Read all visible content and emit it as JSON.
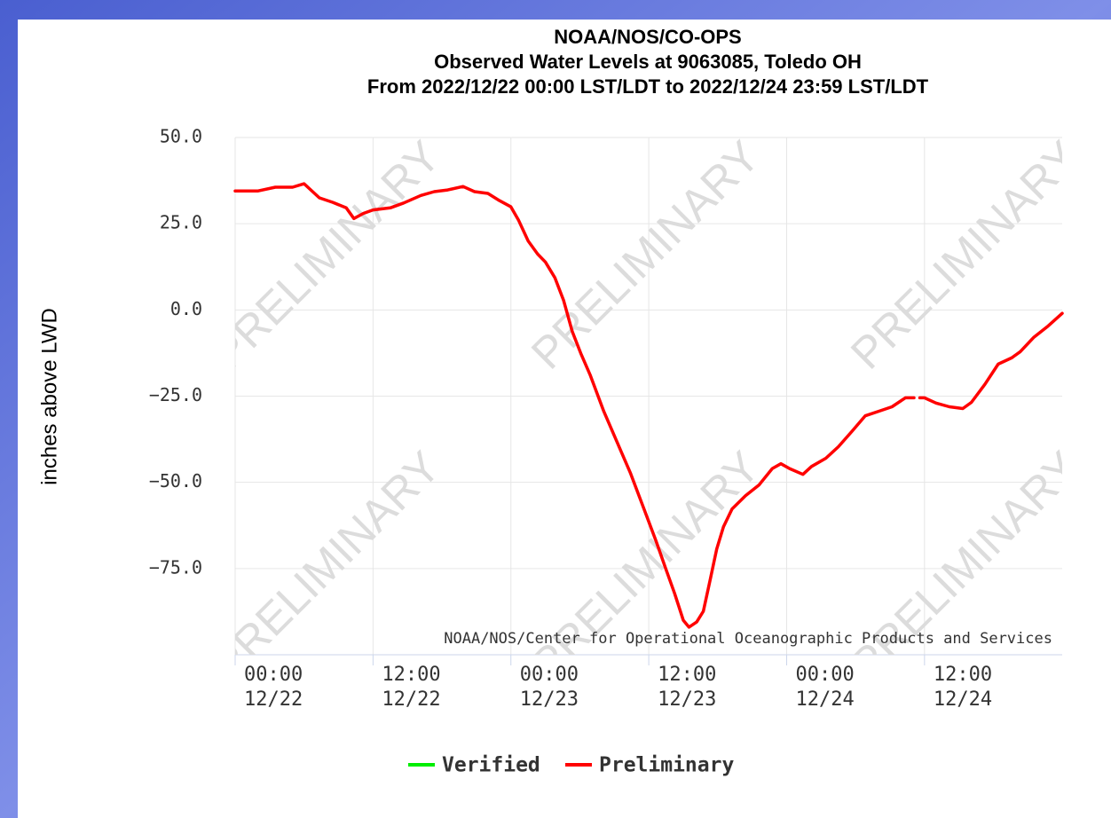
{
  "chart_data": {
    "type": "line",
    "title": [
      "NOAA/NOS/CO-OPS",
      "Observed Water Levels at 9063085, Toledo OH",
      "From 2022/12/22 00:00 LST/LDT to 2022/12/24 23:59 LST/LDT"
    ],
    "y_label": "inches above LWD",
    "watermark": "PRELIMINARY",
    "credit": "NOAA/NOS/Center for Operational Oceanographic Products and Services",
    "grid": true,
    "legend": "bottom",
    "xlim": [
      "12/22 00:00",
      "12/24 23:59"
    ],
    "xticks": [
      {
        "value": "12/22 00:00",
        "label": [
          "00:00",
          "12/22"
        ]
      },
      {
        "value": "12/22 12:00",
        "label": [
          "12:00",
          "12/22"
        ]
      },
      {
        "value": "12/23 00:00",
        "label": [
          "00:00",
          "12/23"
        ]
      },
      {
        "value": "12/23 12:00",
        "label": [
          "12:00",
          "12/23"
        ]
      },
      {
        "value": "12/24 00:00",
        "label": [
          "00:00",
          "12/24"
        ]
      },
      {
        "value": "12/24 12:00",
        "label": [
          "12:00",
          "12/24"
        ]
      }
    ],
    "ylim": [
      -100,
      50
    ],
    "yticks": [
      {
        "value": 50,
        "label": "50.0"
      },
      {
        "value": 25,
        "label": "25.0"
      },
      {
        "value": 0,
        "label": "0.0"
      },
      {
        "value": -25,
        "label": "−25.0"
      },
      {
        "value": -50,
        "label": "−50.0"
      },
      {
        "value": -75,
        "label": "−75.0"
      }
    ],
    "x": [
      "12/22 00:00",
      "12/22 02:00",
      "12/22 03:30",
      "12/22 05:00",
      "12/22 06:00",
      "12/22 07:20",
      "12/22 08:30",
      "12/22 09:40",
      "12/22 10:20",
      "12/22 11:10",
      "12/22 12:00",
      "12/22 13:30",
      "12/22 14:40",
      "12/22 16:10",
      "12/22 17:20",
      "12/22 18:30",
      "12/22 19:50",
      "12/22 20:50",
      "12/22 22:00",
      "12/22 23:00",
      "12/23 00:00",
      "12/23 00:40",
      "12/23 01:30",
      "12/23 02:20",
      "12/23 03:00",
      "12/23 03:50",
      "12/23 04:35",
      "12/23 05:20",
      "12/23 06:05",
      "12/23 06:55",
      "12/23 08:05",
      "12/23 09:15",
      "12/23 10:25",
      "12/23 11:35",
      "12/23 12:40",
      "12/23 13:25",
      "12/23 14:15",
      "12/23 15:00",
      "12/23 15:30",
      "12/23 16:10",
      "12/23 16:45",
      "12/23 17:20",
      "12/23 17:55",
      "12/23 18:30",
      "12/23 19:15",
      "12/23 20:25",
      "12/23 21:35",
      "12/23 22:45",
      "12/23 23:30",
      "12/24 00:15",
      "12/24 01:25",
      "12/24 02:10",
      "12/24 03:25",
      "12/24 04:30",
      "12/24 05:40",
      "12/24 06:50",
      "12/24 08:00",
      "12/24 09:10",
      "12/24 10:20",
      "12/24 11:05",
      "12/24 11:20",
      "12/24 11:35",
      "12/24 12:00",
      "12/24 13:00",
      "12/24 14:10",
      "12/24 15:20",
      "12/24 16:05",
      "12/24 17:15",
      "12/24 18:25",
      "12/24 19:35",
      "12/24 20:20",
      "12/24 21:30",
      "12/24 22:40",
      "12/24 23:59"
    ],
    "series": [
      {
        "name": "Verified",
        "color": "#00ee00",
        "values": [
          null,
          null,
          null,
          null,
          null,
          null,
          null,
          null,
          null,
          null,
          null,
          null,
          null,
          null,
          null,
          null,
          null,
          null,
          null,
          null,
          null,
          null,
          null,
          null,
          null,
          null,
          null,
          null,
          null,
          null,
          null,
          null,
          null,
          null,
          null,
          null,
          null,
          null,
          null,
          null,
          null,
          null,
          null,
          null,
          null,
          null,
          null,
          null,
          null,
          null,
          null,
          null,
          null,
          null,
          null,
          null,
          null,
          null,
          null,
          null,
          null,
          null,
          null,
          null,
          null,
          null,
          null,
          null,
          null,
          null,
          null,
          null,
          null,
          null
        ]
      },
      {
        "name": "Preliminary",
        "color": "#ff0000",
        "values": [
          34.5,
          34.5,
          35.6,
          35.6,
          36.6,
          32.5,
          31.2,
          29.6,
          26.5,
          28,
          29,
          29.6,
          31,
          33.2,
          34.3,
          34.8,
          35.8,
          34.3,
          33.8,
          31.7,
          29.9,
          26,
          20,
          16.2,
          13.9,
          9.3,
          2.8,
          -6.2,
          -12.6,
          -19,
          -29.4,
          -38.4,
          -47.4,
          -57.7,
          -67.3,
          -74.5,
          -82.2,
          -90,
          -92,
          -90.5,
          -87.4,
          -78.4,
          -69.3,
          -62.9,
          -57.7,
          -53.9,
          -50.8,
          -46,
          -44.6,
          -46,
          -47.7,
          -45.4,
          -43,
          -39.7,
          -35.3,
          -30.7,
          -29.4,
          -28.1,
          -25.5,
          -25.5,
          null,
          -25.5,
          -25.5,
          -27,
          -28.1,
          -28.6,
          -26.8,
          -21.6,
          -15.7,
          -13.9,
          -12.1,
          -8,
          -4.9,
          -1
        ]
      }
    ]
  }
}
